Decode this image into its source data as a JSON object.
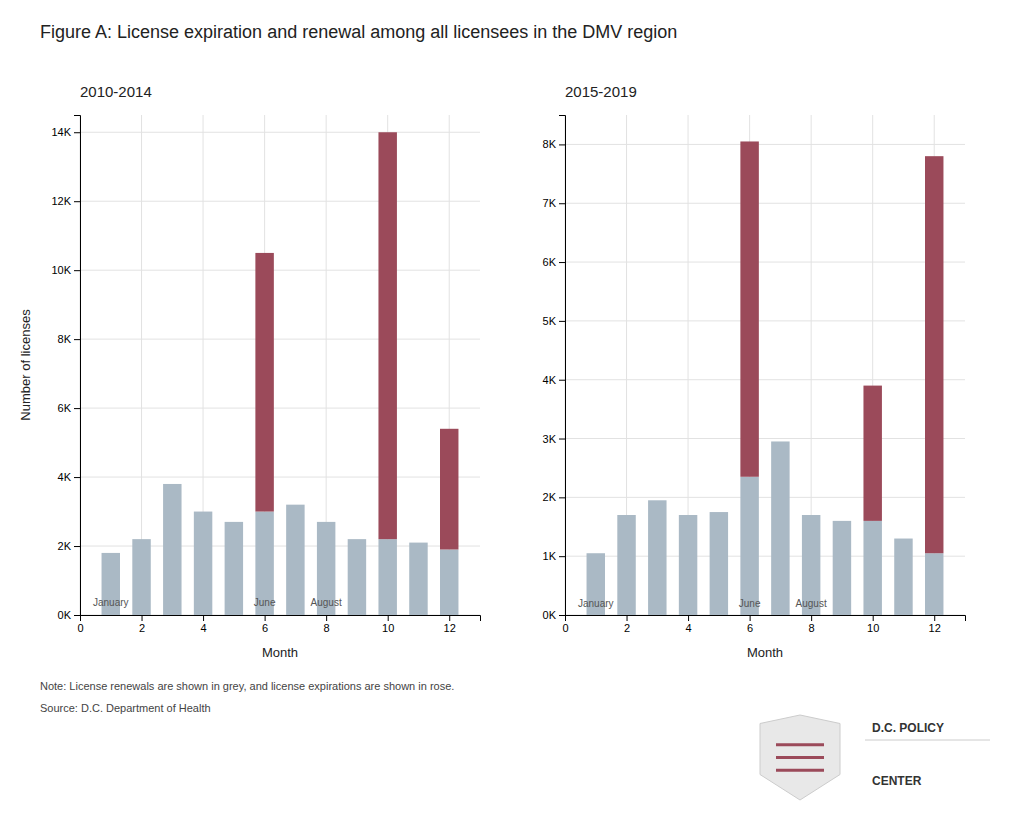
{
  "title": "Figure A: License expiration and renewal among all licensees in the DMV region",
  "note": "Note: License renewals are shown in grey, and license expirations are shown in rose.",
  "source": "Source: D.C. Department of Health",
  "logo": [
    "D.C. POLICY",
    "CENTER"
  ],
  "chart_data": [
    {
      "type": "bar",
      "title": "2010-2014",
      "xlabel": "Month",
      "ylabel": "Number of licenses",
      "stacked": true,
      "grid": true,
      "x": [
        1,
        2,
        3,
        4,
        5,
        6,
        7,
        8,
        9,
        10,
        11,
        12
      ],
      "series": [
        {
          "color": "#aab9c5",
          "values": [
            1800,
            2200,
            3800,
            3000,
            2700,
            3000,
            3200,
            2700,
            2200,
            2200,
            2100,
            1900
          ]
        },
        {
          "color": "#9b4a5a",
          "values": [
            0,
            0,
            0,
            0,
            0,
            7500,
            0,
            0,
            0,
            11800,
            0,
            3500
          ]
        }
      ],
      "xlim": [
        0,
        13
      ],
      "xticks": [
        0,
        2,
        4,
        6,
        8,
        10,
        12
      ],
      "ylim": [
        0,
        14500
      ],
      "yticks": [
        {
          "value": 0,
          "label": "0K"
        },
        {
          "value": 2000,
          "label": "2K"
        },
        {
          "value": 4000,
          "label": "4K"
        },
        {
          "value": 6000,
          "label": "6K"
        },
        {
          "value": 8000,
          "label": "8K"
        },
        {
          "value": 10000,
          "label": "10K"
        },
        {
          "value": 12000,
          "label": "12K"
        },
        {
          "value": 14000,
          "label": "14K"
        }
      ],
      "annotations": [
        {
          "text": "January",
          "x": 1,
          "y": 200
        },
        {
          "text": "June",
          "x": 6,
          "y": 200
        },
        {
          "text": "August",
          "x": 8,
          "y": 200
        }
      ]
    },
    {
      "type": "bar",
      "title": "2015-2019",
      "xlabel": "Month",
      "stacked": true,
      "grid": true,
      "x": [
        1,
        2,
        3,
        4,
        5,
        6,
        7,
        8,
        9,
        10,
        11,
        12
      ],
      "series": [
        {
          "color": "#aab9c5",
          "values": [
            1050,
            1700,
            1950,
            1700,
            1750,
            2350,
            2950,
            1700,
            1600,
            1600,
            1300,
            1050
          ]
        },
        {
          "color": "#9b4a5a",
          "values": [
            0,
            0,
            0,
            0,
            0,
            5700,
            0,
            0,
            0,
            2300,
            0,
            6750
          ]
        }
      ],
      "xlim": [
        0,
        13
      ],
      "xticks": [
        0,
        2,
        4,
        6,
        8,
        10,
        12
      ],
      "ylim": [
        0,
        8500
      ],
      "yticks": [
        {
          "value": 0,
          "label": "0K"
        },
        {
          "value": 1000,
          "label": "1K"
        },
        {
          "value": 2000,
          "label": "2K"
        },
        {
          "value": 3000,
          "label": "3K"
        },
        {
          "value": 4000,
          "label": "4K"
        },
        {
          "value": 5000,
          "label": "5K"
        },
        {
          "value": 6000,
          "label": "6K"
        },
        {
          "value": 7000,
          "label": "7K"
        },
        {
          "value": 8000,
          "label": "8K"
        }
      ],
      "annotations": [
        {
          "text": "January",
          "x": 1,
          "y": 100
        },
        {
          "text": "June",
          "x": 6,
          "y": 100
        },
        {
          "text": "August",
          "x": 8,
          "y": 100
        }
      ]
    }
  ]
}
